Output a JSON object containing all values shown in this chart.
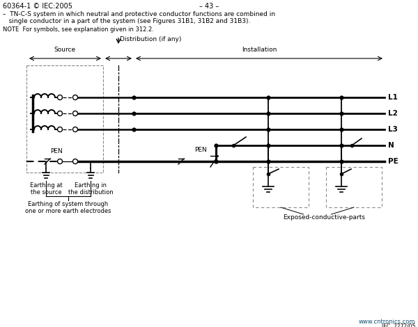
{
  "title_left": "60364-1 © IEC:2005",
  "title_center": "– 43 –",
  "desc_line1": "–  TN-C-S system in which neutral and protective conductor functions are combined in",
  "desc_line2": "   single conductor in a part of the system (see Figures 31B1, 31B2 and 31B3).",
  "note": "NOTE  For symbols, see explanation given in 312.2.",
  "label_distribution": "Distribution (if any)",
  "label_source": "Source",
  "label_installation": "Installation",
  "label_L1": "L1",
  "label_L2": "L2",
  "label_L3": "L3",
  "label_N": "N",
  "label_PE": "PE",
  "label_PEN1": "PEN",
  "label_PEN2": "PEN",
  "label_earth_source": "Earthing at\nthe source",
  "label_earth_dist": "Earthing in\nthe distribution",
  "label_earth_system": "Earthing of system through\none or more earth electrodes",
  "label_exposed": "Exposed-conductive-parts",
  "label_website": "www.cntronics.com",
  "label_iec": "IEC  2272/05",
  "bg_color": "#ffffff",
  "line_color": "#000000",
  "dashed_color": "#888888"
}
